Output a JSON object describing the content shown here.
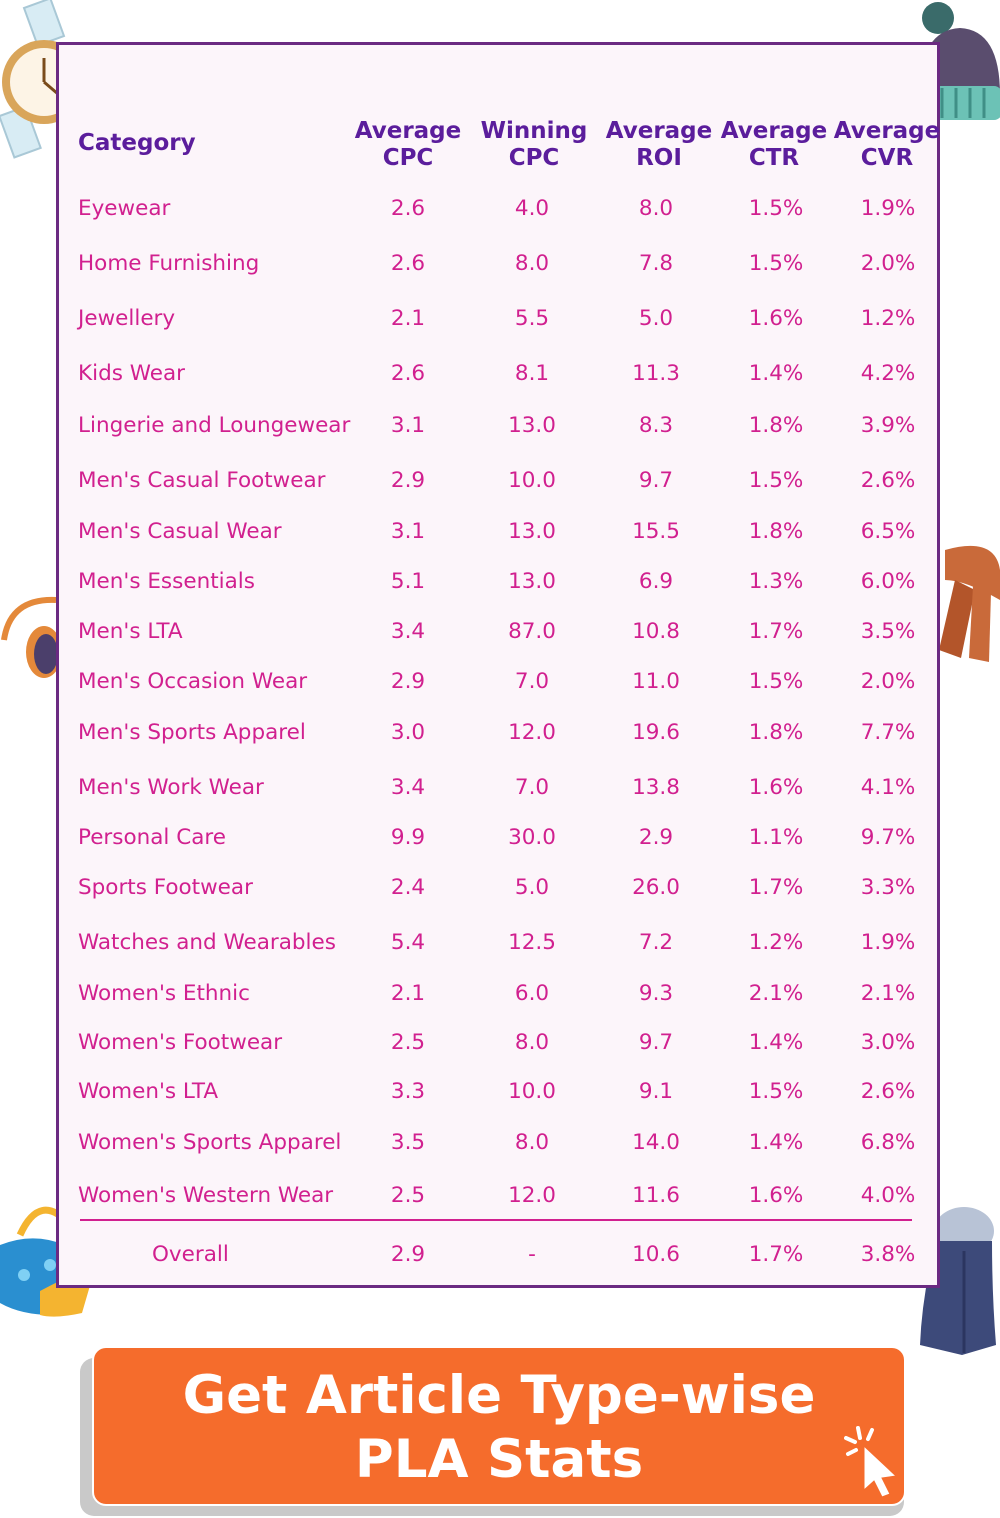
{
  "table": {
    "headers": {
      "category": "Category",
      "avg_cpc": [
        "Average",
        "CPC"
      ],
      "win_cpc": [
        "Winning",
        "CPC"
      ],
      "avg_roi": [
        "Average",
        "ROI"
      ],
      "avg_ctr": [
        "Average",
        "CTR"
      ],
      "avg_cvr": [
        "Average",
        "CVR"
      ]
    },
    "rows": [
      [
        "Eyewear",
        "2.6",
        "4.0",
        "8.0",
        "1.5%",
        "1.9%"
      ],
      [
        "Home Furnishing",
        "2.6",
        "8.0",
        "7.8",
        "1.5%",
        "2.0%"
      ],
      [
        "Jewellery",
        "2.1",
        "5.5",
        "5.0",
        "1.6%",
        "1.2%"
      ],
      [
        "Kids Wear",
        "2.6",
        "8.1",
        "11.3",
        "1.4%",
        "4.2%"
      ],
      [
        "Lingerie and Loungewear",
        "3.1",
        "13.0",
        "8.3",
        "1.8%",
        "3.9%"
      ],
      [
        "Men's Casual Footwear",
        "2.9",
        "10.0",
        "9.7",
        "1.5%",
        "2.6%"
      ],
      [
        "Men's Casual Wear",
        "3.1",
        "13.0",
        "15.5",
        "1.8%",
        "6.5%"
      ],
      [
        "Men's Essentials",
        "5.1",
        "13.0",
        "6.9",
        "1.3%",
        "6.0%"
      ],
      [
        "Men's LTA",
        "3.4",
        "87.0",
        "10.8",
        "1.7%",
        "3.5%"
      ],
      [
        "Men's Occasion Wear",
        "2.9",
        "7.0",
        "11.0",
        "1.5%",
        "2.0%"
      ],
      [
        "Men's Sports Apparel",
        "3.0",
        "12.0",
        "19.6",
        "1.8%",
        "7.7%"
      ],
      [
        "Men's Work Wear",
        "3.4",
        "7.0",
        "13.8",
        "1.6%",
        "4.1%"
      ],
      [
        "Personal Care",
        "9.9",
        "30.0",
        "2.9",
        "1.1%",
        "9.7%"
      ],
      [
        "Sports Footwear",
        "2.4",
        "5.0",
        "26.0",
        "1.7%",
        "3.3%"
      ],
      [
        "Watches and Wearables",
        "5.4",
        "12.5",
        "7.2",
        "1.2%",
        "1.9%"
      ],
      [
        "Women's Ethnic",
        "2.1",
        "6.0",
        "9.3",
        "2.1%",
        "2.1%"
      ],
      [
        "Women's Footwear",
        "2.5",
        "8.0",
        "9.7",
        "1.4%",
        "3.0%"
      ],
      [
        "Women's LTA",
        "3.3",
        "10.0",
        "9.1",
        "1.5%",
        "2.6%"
      ],
      [
        "Women's Sports Apparel",
        "3.5",
        "8.0",
        "14.0",
        "1.4%",
        "6.8%"
      ],
      [
        "Women's Western Wear",
        "2.5",
        "12.0",
        "11.6",
        "1.6%",
        "4.0%"
      ]
    ],
    "overall": [
      "Overall",
      "2.9",
      "-",
      "10.6",
      "1.7%",
      "3.8%"
    ]
  },
  "cta": {
    "line1": "Get Article Type-wise",
    "line2": "PLA Stats"
  },
  "colors": {
    "header_text": "#5b1d9c",
    "cell_text": "#d1208f",
    "border": "#6b2a82",
    "button": "#f56c2c"
  }
}
